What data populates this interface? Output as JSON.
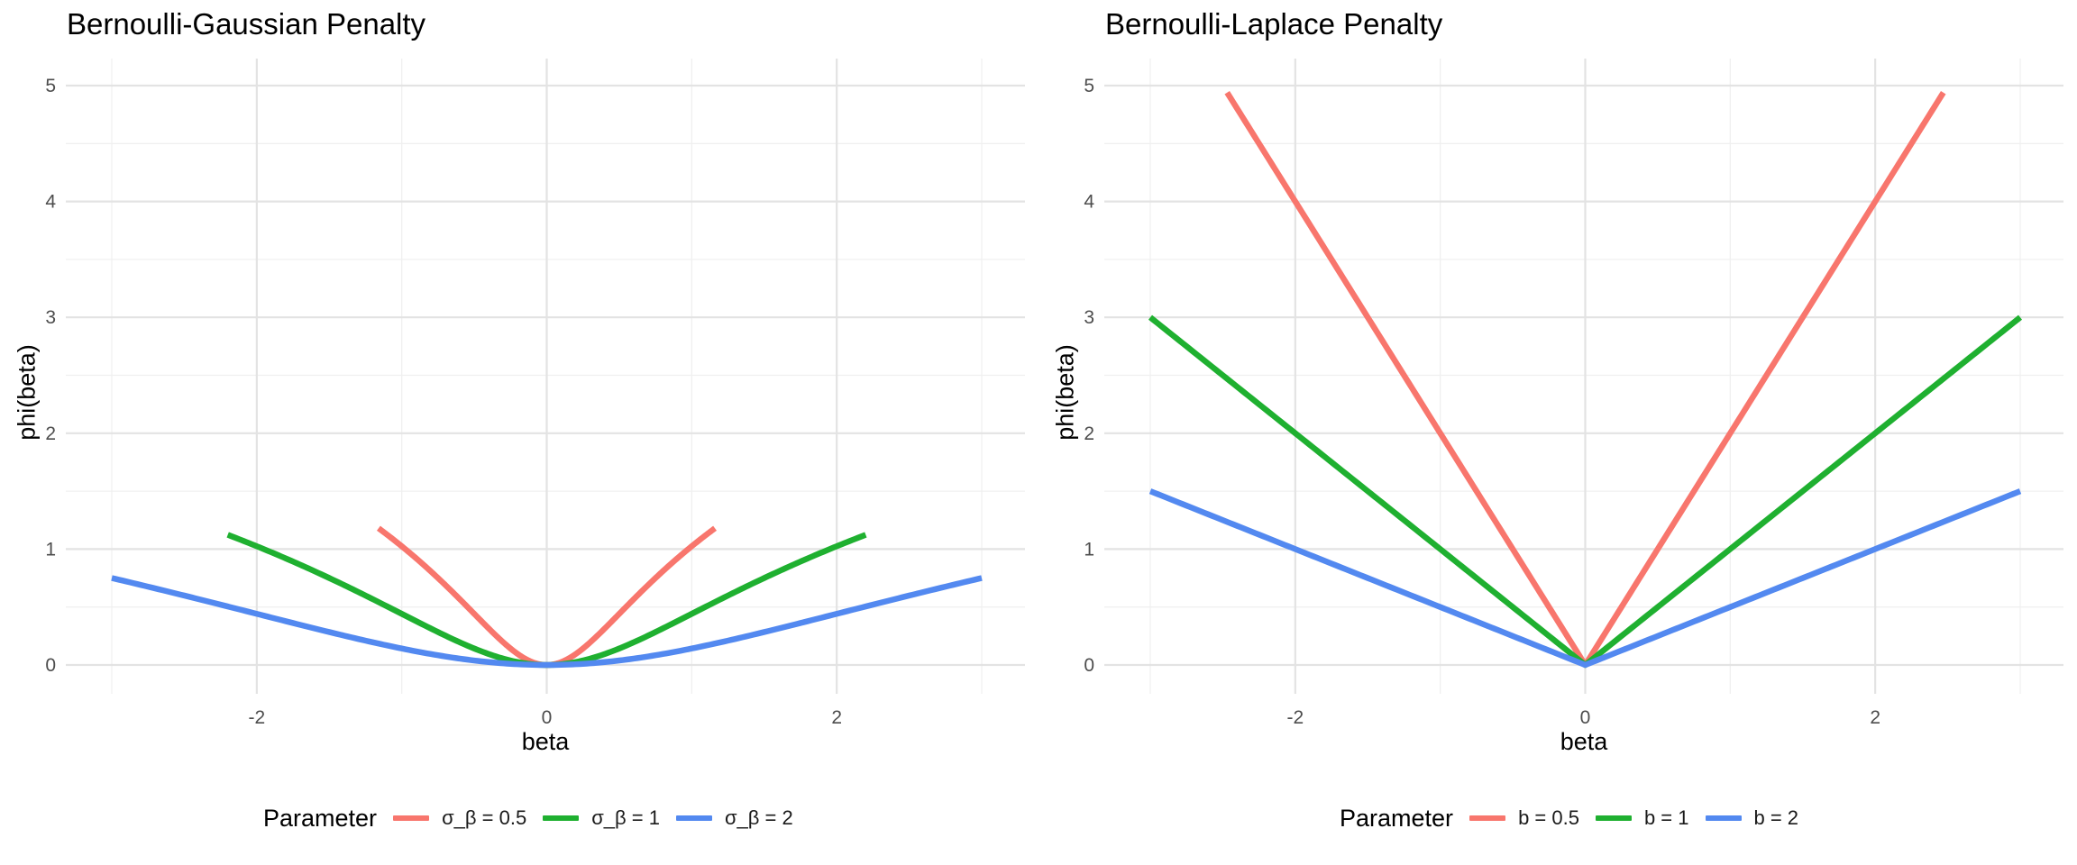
{
  "chart_data": [
    {
      "type": "line",
      "title": "Bernoulli-Gaussian Penalty",
      "xlabel": "beta",
      "ylabel": "phi(beta)",
      "xlim": [
        -3,
        3
      ],
      "ylim": [
        0,
        5
      ],
      "x_ticks": [
        -2,
        0,
        2
      ],
      "y_ticks": [
        0,
        1,
        2,
        3,
        4,
        5
      ],
      "grid": true,
      "legend_position": "bottom",
      "legend_title": "Parameter",
      "formula": "gaussian",
      "series": [
        {
          "name": "σ_β = 0.5",
          "param": 0.5,
          "color": "#F8766D",
          "x_range": [
            -1.16,
            1.16
          ]
        },
        {
          "name": "σ_β = 1",
          "param": 1,
          "color": "#1FB030",
          "x_range": [
            -2.2,
            2.2
          ]
        },
        {
          "name": "σ_β = 2",
          "param": 2,
          "color": "#5389F0",
          "x_range": [
            -3,
            3
          ]
        }
      ]
    },
    {
      "type": "line",
      "title": "Bernoulli-Laplace Penalty",
      "xlabel": "beta",
      "ylabel": "phi(beta)",
      "xlim": [
        -3,
        3
      ],
      "ylim": [
        0,
        5
      ],
      "x_ticks": [
        -2,
        0,
        2
      ],
      "y_ticks": [
        0,
        1,
        2,
        3,
        4,
        5
      ],
      "grid": true,
      "legend_position": "bottom",
      "legend_title": "Parameter",
      "formula": "laplace",
      "series": [
        {
          "name": "b = 0.5",
          "param": 0.5,
          "color": "#F8766D",
          "x_range": [
            -2.47,
            2.47
          ]
        },
        {
          "name": "b = 1",
          "param": 1,
          "color": "#1FB030",
          "x_range": [
            -3,
            3
          ]
        },
        {
          "name": "b = 2",
          "param": 2,
          "color": "#5389F0",
          "x_range": [
            -3,
            3
          ]
        }
      ]
    }
  ]
}
